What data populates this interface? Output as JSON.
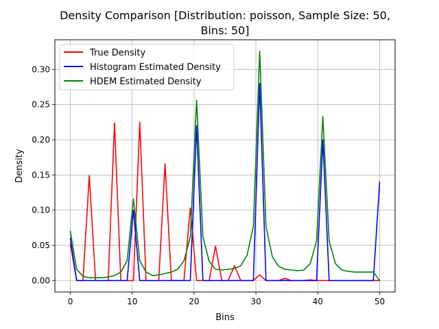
{
  "chart_data": {
    "type": "line",
    "title_line1": "Density Comparison [Distribution: poisson, Sample Size: 50,",
    "title_line2": "Bins: 50]",
    "xlabel": "Bins",
    "ylabel": "Density",
    "xlim": [
      -2.5,
      52.5
    ],
    "ylim": [
      -0.0163,
      0.3422
    ],
    "xticks": [
      0,
      10,
      20,
      30,
      40,
      50
    ],
    "yticks": [
      0.0,
      0.05,
      0.1,
      0.15,
      0.2,
      0.25,
      0.3
    ],
    "ytick_labels": [
      "0.00",
      "0.05",
      "0.10",
      "0.15",
      "0.20",
      "0.25",
      "0.30"
    ],
    "grid": true,
    "legend_position": "top-left",
    "series": [
      {
        "name": "True Density",
        "color": "#ff0000",
        "points": [
          [
            0,
            0.052
          ],
          [
            1.02,
            0.0
          ],
          [
            2.04,
            0.0
          ],
          [
            3.06,
            0.149
          ],
          [
            4.08,
            0.0
          ],
          [
            5.1,
            0.0
          ],
          [
            6.12,
            0.0
          ],
          [
            7.14,
            0.224
          ],
          [
            8.16,
            0.0
          ],
          [
            9.18,
            0.0
          ],
          [
            10.2,
            0.0
          ],
          [
            11.22,
            0.225
          ],
          [
            12.24,
            0.0
          ],
          [
            13.27,
            0.0
          ],
          [
            14.29,
            0.0
          ],
          [
            15.31,
            0.166
          ],
          [
            16.33,
            0.0
          ],
          [
            17.35,
            0.0
          ],
          [
            18.37,
            0.0
          ],
          [
            19.39,
            0.103
          ],
          [
            20.41,
            0.0
          ],
          [
            21.43,
            0.0
          ],
          [
            22.45,
            0.0
          ],
          [
            23.47,
            0.049
          ],
          [
            24.49,
            0.0
          ],
          [
            25.51,
            0.0
          ],
          [
            26.53,
            0.021
          ],
          [
            27.55,
            0.0
          ],
          [
            28.57,
            0.0
          ],
          [
            29.59,
            0.0
          ],
          [
            30.61,
            0.008
          ],
          [
            31.63,
            0.0
          ],
          [
            32.65,
            0.0
          ],
          [
            33.67,
            0.0
          ],
          [
            34.69,
            0.003
          ],
          [
            35.71,
            0.0
          ],
          [
            36.73,
            0.0
          ],
          [
            37.76,
            0.0
          ],
          [
            38.78,
            0.001
          ],
          [
            39.8,
            0.0
          ],
          [
            40.82,
            0.0
          ],
          [
            41.84,
            0.0
          ],
          [
            42.86,
            0.0
          ],
          [
            43.88,
            0.0
          ],
          [
            44.9,
            0.0
          ],
          [
            45.92,
            0.0
          ],
          [
            46.94,
            0.0
          ],
          [
            47.96,
            0.0
          ],
          [
            48.98,
            0.0
          ],
          [
            50,
            0.0
          ]
        ]
      },
      {
        "name": "Histogram Estimated Density",
        "color": "#0000ff",
        "points": [
          [
            0,
            0.06
          ],
          [
            1.02,
            0.0
          ],
          [
            2.04,
            0.0
          ],
          [
            3.06,
            0.0
          ],
          [
            4.08,
            0.0
          ],
          [
            5.1,
            0.0
          ],
          [
            6.12,
            0.0
          ],
          [
            7.14,
            0.0
          ],
          [
            8.16,
            0.0
          ],
          [
            9.18,
            0.0
          ],
          [
            10.2,
            0.1
          ],
          [
            11.22,
            0.0
          ],
          [
            12.24,
            0.0
          ],
          [
            13.27,
            0.0
          ],
          [
            14.29,
            0.0
          ],
          [
            15.31,
            0.0
          ],
          [
            16.33,
            0.0
          ],
          [
            17.35,
            0.0
          ],
          [
            18.37,
            0.0
          ],
          [
            19.39,
            0.0
          ],
          [
            20.41,
            0.22
          ],
          [
            21.43,
            0.0
          ],
          [
            22.45,
            0.0
          ],
          [
            23.47,
            0.0
          ],
          [
            24.49,
            0.0
          ],
          [
            25.51,
            0.0
          ],
          [
            26.53,
            0.0
          ],
          [
            27.55,
            0.0
          ],
          [
            28.57,
            0.0
          ],
          [
            29.59,
            0.0
          ],
          [
            30.61,
            0.28
          ],
          [
            31.63,
            0.0
          ],
          [
            32.65,
            0.0
          ],
          [
            33.67,
            0.0
          ],
          [
            34.69,
            0.0
          ],
          [
            35.71,
            0.0
          ],
          [
            36.73,
            0.0
          ],
          [
            37.76,
            0.0
          ],
          [
            38.78,
            0.0
          ],
          [
            39.8,
            0.0
          ],
          [
            40.82,
            0.2
          ],
          [
            41.84,
            0.0
          ],
          [
            42.86,
            0.0
          ],
          [
            43.88,
            0.0
          ],
          [
            44.9,
            0.0
          ],
          [
            45.92,
            0.0
          ],
          [
            46.94,
            0.0
          ],
          [
            47.96,
            0.0
          ],
          [
            48.98,
            0.0
          ],
          [
            50,
            0.14
          ]
        ]
      },
      {
        "name": "HDEM Estimated Density",
        "color": "#008000",
        "points": [
          [
            0,
            0.07
          ],
          [
            1.02,
            0.016
          ],
          [
            2.04,
            0.006
          ],
          [
            3.06,
            0.004
          ],
          [
            4.08,
            0.004
          ],
          [
            5.1,
            0.004
          ],
          [
            6.12,
            0.005
          ],
          [
            7.14,
            0.007
          ],
          [
            8.16,
            0.012
          ],
          [
            9.18,
            0.028
          ],
          [
            10.2,
            0.116
          ],
          [
            11.22,
            0.028
          ],
          [
            12.24,
            0.012
          ],
          [
            13.27,
            0.007
          ],
          [
            14.29,
            0.008
          ],
          [
            15.31,
            0.01
          ],
          [
            16.33,
            0.012
          ],
          [
            17.35,
            0.016
          ],
          [
            18.37,
            0.028
          ],
          [
            19.39,
            0.062
          ],
          [
            20.41,
            0.256
          ],
          [
            21.43,
            0.062
          ],
          [
            22.45,
            0.027
          ],
          [
            23.47,
            0.016
          ],
          [
            24.49,
            0.015
          ],
          [
            25.51,
            0.016
          ],
          [
            26.53,
            0.017
          ],
          [
            27.55,
            0.021
          ],
          [
            28.57,
            0.036
          ],
          [
            29.59,
            0.077
          ],
          [
            30.61,
            0.326
          ],
          [
            31.63,
            0.077
          ],
          [
            32.65,
            0.034
          ],
          [
            33.67,
            0.02
          ],
          [
            34.69,
            0.016
          ],
          [
            35.71,
            0.015
          ],
          [
            36.73,
            0.014
          ],
          [
            37.76,
            0.015
          ],
          [
            38.78,
            0.024
          ],
          [
            39.8,
            0.056
          ],
          [
            40.82,
            0.233
          ],
          [
            41.84,
            0.056
          ],
          [
            42.86,
            0.024
          ],
          [
            43.88,
            0.015
          ],
          [
            44.9,
            0.013
          ],
          [
            45.92,
            0.012
          ],
          [
            46.94,
            0.012
          ],
          [
            47.96,
            0.012
          ],
          [
            48.98,
            0.012
          ],
          [
            50,
            0.0
          ]
        ]
      }
    ]
  }
}
